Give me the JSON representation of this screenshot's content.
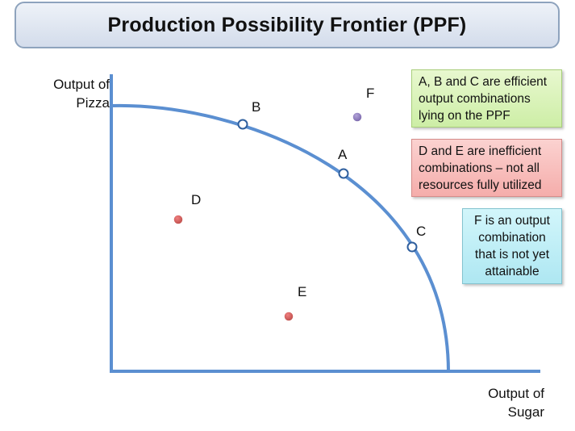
{
  "title": "Production Possibility Frontier (PPF)",
  "axes": {
    "y_label_line1": "Output of",
    "y_label_line2": "Pizza",
    "x_label_line1": "Output of",
    "x_label_line2": "Sugar"
  },
  "points": {
    "A": "A",
    "B": "B",
    "C": "C",
    "D": "D",
    "E": "E",
    "F": "F"
  },
  "notes": {
    "efficient_line1": "A, B and C are efficient",
    "efficient_line2": "output combinations",
    "efficient_line3": "lying on the PPF",
    "inefficient_line1": "D and E are inefficient",
    "inefficient_line2": "combinations – not all",
    "inefficient_line3": "resources fully utilized",
    "unattainable_line1": "F is an output",
    "unattainable_line2": "combination",
    "unattainable_line3": "that is not yet",
    "unattainable_line4": "attainable"
  },
  "colors": {
    "curve": "#5b8fd1",
    "axis": "#5b8fd1",
    "inefficient_point": "#c0504d",
    "unattainable_point": "#8a78b8"
  }
}
